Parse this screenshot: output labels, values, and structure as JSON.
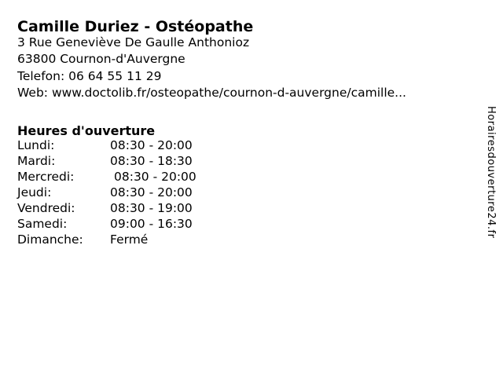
{
  "colors": {
    "background": "#ffffff",
    "text": "#000000"
  },
  "header": {
    "title": "Camille Duriez - Ostéopathe"
  },
  "contact": {
    "lines": [
      "3 Rue Geneviève De Gaulle Anthonioz",
      "63800 Cournon-d'Auvergne",
      "Telefon: 06 64 55 11 29",
      "Web: www.doctolib.fr/osteopathe/cournon-d-auvergne/camille..."
    ]
  },
  "hours": {
    "heading": "Heures d'ouverture",
    "rows": [
      {
        "day": "Lundi:",
        "time": "08:30 - 20:00"
      },
      {
        "day": "Mardi:",
        "time": "08:30 - 18:30"
      },
      {
        "day": "Mercredi:",
        "time": "08:30 - 20:00"
      },
      {
        "day": "Jeudi:",
        "time": "08:30 - 20:00"
      },
      {
        "day": "Vendredi:",
        "time": "08:30 - 19:00"
      },
      {
        "day": "Samedi:",
        "time": "09:00 - 16:30"
      },
      {
        "day": "Dimanche:",
        "time": "Fermé"
      }
    ]
  },
  "watermark": "Horairesdouverture24.fr"
}
